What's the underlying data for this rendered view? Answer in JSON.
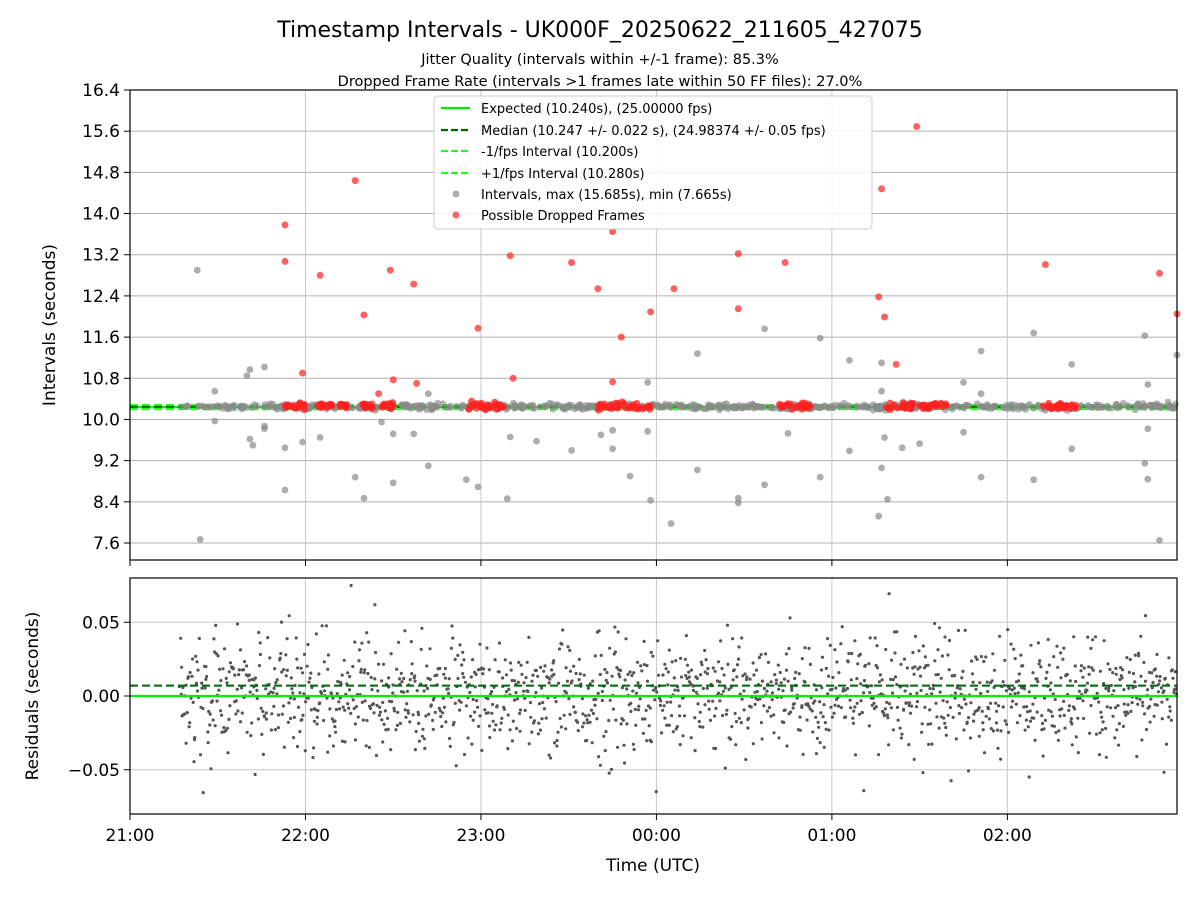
{
  "chart_data": [
    {
      "type": "scatter",
      "title": "Timestamp Intervals - UK000F_20250622_211605_427075",
      "subtitle_1": "Jitter Quality (intervals within +/-1 frame): 85.3%",
      "subtitle_2": "Dropped Frame Rate (intervals >1 frames late within 50 FF files): 27.0%",
      "ylabel": "Intervals (seconds)",
      "ylim": [
        7.27,
        16.4
      ],
      "yticks": [
        "16.4",
        "15.6",
        "14.8",
        "14.0",
        "13.2",
        "12.4",
        "11.6",
        "10.8",
        "10.0",
        "9.2",
        "8.4",
        "7.6"
      ],
      "grid": true,
      "legend_position": "top-center",
      "legend": [
        "Expected (10.240s), (25.00000 fps)",
        "Median (10.247 +/- 0.022 s), (24.98374 +/- 0.05 fps)",
        "-1/fps Interval (10.200s)",
        "+1/fps Interval (10.280s)",
        "Intervals, max (15.685s), min (7.665s)",
        "Possible Dropped Frames"
      ],
      "reference_lines": {
        "expected": 10.24,
        "median": 10.247,
        "minus_1_fps": 10.2,
        "plus_1_fps": 10.28
      },
      "colors": {
        "expected": "#00ee00",
        "median": "#006400",
        "interval_lines": "#22ff22",
        "intervals": "#8a8a8a",
        "dropped": "#ff2020"
      },
      "outliers_gray": [
        [
          "21:23",
          12.9
        ],
        [
          "21:24",
          7.67
        ],
        [
          "21:29",
          10.55
        ],
        [
          "21:29",
          9.97
        ],
        [
          "21:40",
          10.85
        ],
        [
          "21:41",
          10.97
        ],
        [
          "21:41",
          9.62
        ],
        [
          "21:42",
          9.5
        ],
        [
          "21:46",
          11.02
        ],
        [
          "21:46",
          9.87
        ],
        [
          "21:46",
          9.82
        ],
        [
          "21:53",
          9.45
        ],
        [
          "21:53",
          8.63
        ],
        [
          "21:59",
          9.56
        ],
        [
          "22:05",
          9.65
        ],
        [
          "22:17",
          8.88
        ],
        [
          "22:20",
          8.47
        ],
        [
          "22:26",
          9.95
        ],
        [
          "22:30",
          8.77
        ],
        [
          "22:30",
          9.72
        ],
        [
          "22:37",
          9.72
        ],
        [
          "22:42",
          9.1
        ],
        [
          "22:42",
          10.5
        ],
        [
          "22:55",
          8.83
        ],
        [
          "22:59",
          8.69
        ],
        [
          "23:09",
          8.46
        ],
        [
          "23:10",
          9.66
        ],
        [
          "23:19",
          9.58
        ],
        [
          "23:31",
          9.4
        ],
        [
          "23:41",
          9.7
        ],
        [
          "23:45",
          9.79
        ],
        [
          "23:45",
          9.43
        ],
        [
          "23:51",
          8.9
        ],
        [
          "23:57",
          10.72
        ],
        [
          "23:57",
          9.77
        ],
        [
          "23:58",
          8.43
        ],
        [
          "00:05",
          7.98
        ],
        [
          "00:14",
          11.28
        ],
        [
          "00:14",
          9.02
        ],
        [
          "00:28",
          8.47
        ],
        [
          "00:28",
          8.38
        ],
        [
          "00:37",
          11.76
        ],
        [
          "00:37",
          8.73
        ],
        [
          "00:45",
          9.73
        ],
        [
          "00:56",
          11.58
        ],
        [
          "00:56",
          8.88
        ],
        [
          "01:06",
          11.15
        ],
        [
          "01:06",
          9.39
        ],
        [
          "01:16",
          8.12
        ],
        [
          "01:17",
          11.1
        ],
        [
          "01:17",
          10.55
        ],
        [
          "01:17",
          9.06
        ],
        [
          "01:18",
          9.65
        ],
        [
          "01:19",
          8.45
        ],
        [
          "01:24",
          9.45
        ],
        [
          "01:30",
          9.53
        ],
        [
          "01:45",
          10.72
        ],
        [
          "01:45",
          9.75
        ],
        [
          "01:51",
          11.33
        ],
        [
          "01:51",
          10.5
        ],
        [
          "01:51",
          8.88
        ],
        [
          "02:09",
          11.68
        ],
        [
          "02:09",
          8.83
        ],
        [
          "02:22",
          11.07
        ],
        [
          "02:22",
          9.43
        ],
        [
          "02:47",
          11.63
        ],
        [
          "02:48",
          10.68
        ],
        [
          "02:48",
          9.82
        ],
        [
          "02:48",
          8.84
        ],
        [
          "02:52",
          7.65
        ],
        [
          "02:58",
          11.25
        ],
        [
          "02:47",
          9.15
        ]
      ],
      "dropped_frames": [
        [
          "21:53",
          13.78
        ],
        [
          "21:53",
          13.07
        ],
        [
          "21:59",
          10.9
        ],
        [
          "22:05",
          12.8
        ],
        [
          "22:17",
          14.64
        ],
        [
          "22:20",
          12.03
        ],
        [
          "22:25",
          10.5
        ],
        [
          "22:29",
          12.9
        ],
        [
          "22:30",
          10.77
        ],
        [
          "22:37",
          12.63
        ],
        [
          "22:38",
          10.7
        ],
        [
          "22:59",
          11.77
        ],
        [
          "23:10",
          13.18
        ],
        [
          "23:11",
          10.8
        ],
        [
          "23:31",
          13.05
        ],
        [
          "23:40",
          12.54
        ],
        [
          "23:45",
          13.65
        ],
        [
          "23:45",
          10.73
        ],
        [
          "23:48",
          11.6
        ],
        [
          "23:58",
          12.09
        ],
        [
          "00:06",
          12.54
        ],
        [
          "00:28",
          13.22
        ],
        [
          "00:28",
          12.15
        ],
        [
          "00:44",
          13.05
        ],
        [
          "01:16",
          12.38
        ],
        [
          "01:17",
          14.48
        ],
        [
          "01:18",
          11.99
        ],
        [
          "01:22",
          11.07
        ],
        [
          "01:29",
          15.69
        ],
        [
          "02:13",
          13.01
        ],
        [
          "02:52",
          12.84
        ],
        [
          "02:58",
          12.05
        ]
      ],
      "dropped_clusters": [
        {
          "start": "21:53",
          "end": "22:01"
        },
        {
          "start": "22:04",
          "end": "22:15"
        },
        {
          "start": "22:18",
          "end": "22:30"
        },
        {
          "start": "22:55",
          "end": "23:08"
        },
        {
          "start": "23:40",
          "end": "23:58"
        },
        {
          "start": "00:42",
          "end": "00:53"
        },
        {
          "start": "01:18",
          "end": "01:28"
        },
        {
          "start": "01:30",
          "end": "01:40"
        },
        {
          "start": "02:12",
          "end": "02:24"
        }
      ]
    },
    {
      "type": "scatter",
      "xlabel": "Time (UTC)",
      "ylabel": "Residuals (seconds)",
      "ylim": [
        -0.08,
        0.08
      ],
      "yticks": [
        "0.05",
        "0.00",
        "−0.05"
      ],
      "xlim": [
        "21:00",
        "02:58"
      ],
      "xticks": [
        "21:00",
        "22:00",
        "23:00",
        "00:00",
        "01:00",
        "02:00"
      ],
      "grid": true,
      "reference_lines": {
        "zero": 0.0,
        "median_offset": 0.007
      },
      "colors": {
        "points": "#555555",
        "zero": "#00ee00",
        "median": "#006400"
      },
      "x_range_points": [
        "21:17",
        "02:58"
      ],
      "approx_point_count": 1500,
      "residual_spread_sd": 0.02
    }
  ]
}
